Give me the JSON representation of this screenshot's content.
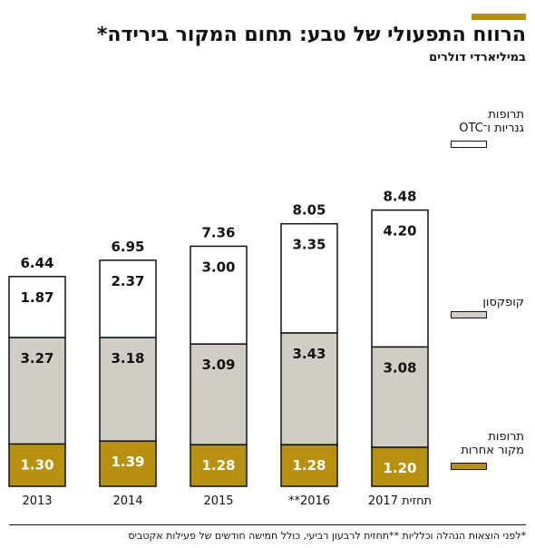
{
  "header": {
    "title": "הרווח התפעולי של טבע: תחום המקור בירידה*",
    "subtitle": "במיליארדי דולרים"
  },
  "legend": {
    "otc": [
      "תרופות",
      "גנריות ו־OTC"
    ],
    "copaxone": [
      "קופקסון"
    ],
    "other": [
      "תרופות",
      "מקור אחרות"
    ]
  },
  "colors": {
    "generics": "#ffffff",
    "copaxone": "#d1cdc6",
    "other": "#b8900f",
    "outline": "#111111",
    "accent": "#b8900f"
  },
  "footnote": "*לפני הוצאות הנהלה וכלליות **תחזית לרבעון רביעי, כולל חמישה חודשים של פעילות אקטביס",
  "chart_data": {
    "type": "bar",
    "stacked": true,
    "categories": [
      "2013",
      "2014",
      "2015",
      "2016**",
      "תחזית 2017"
    ],
    "series": [
      {
        "name": "תרופות מקור אחרות",
        "values": [
          1.3,
          1.39,
          1.28,
          1.28,
          1.2
        ]
      },
      {
        "name": "קופקסון",
        "values": [
          3.27,
          3.18,
          3.09,
          3.43,
          3.08
        ]
      },
      {
        "name": "תרופות גנריות ו־OTC",
        "values": [
          1.87,
          2.37,
          3.0,
          3.35,
          4.2
        ]
      }
    ],
    "totals": [
      6.44,
      6.95,
      7.36,
      8.05,
      8.48
    ],
    "value_labels": [
      [
        "1.30",
        "3.27",
        "1.87"
      ],
      [
        "1.39",
        "3.18",
        "2.37"
      ],
      [
        "1.28",
        "3.09",
        "3.00"
      ],
      [
        "1.28",
        "3.43",
        "3.35"
      ],
      [
        "1.20",
        "3.08",
        "4.20"
      ]
    ],
    "total_labels": [
      "6.44",
      "6.95",
      "7.36",
      "8.05",
      "8.48"
    ],
    "ylim": [
      0,
      8.48
    ],
    "grid": false
  }
}
